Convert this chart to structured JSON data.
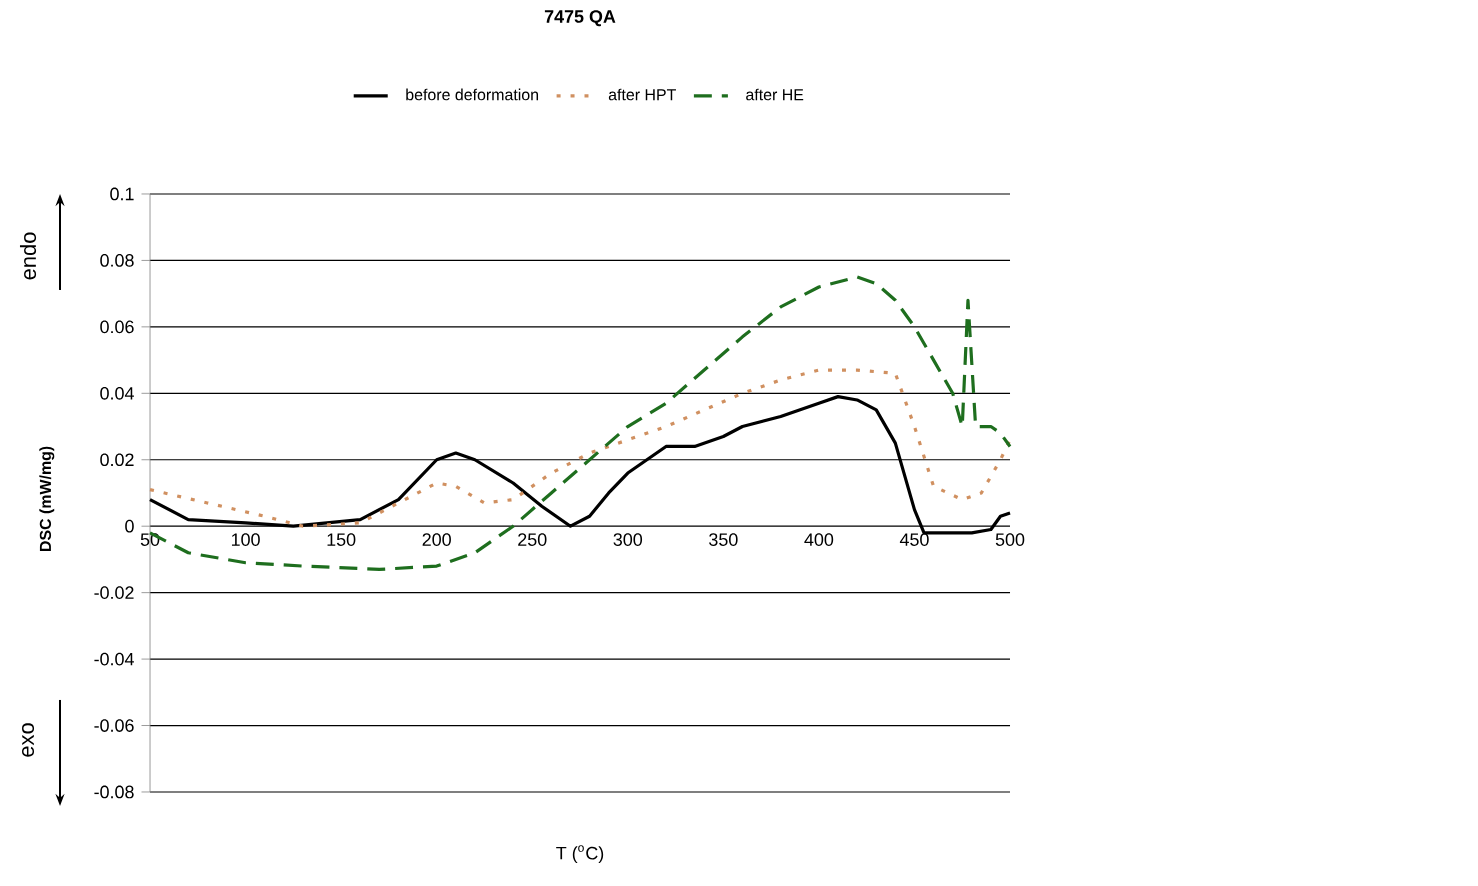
{
  "chart_data": {
    "type": "line",
    "title": "**7475 QA**",
    "xlabel": "T ($^{o}$C)",
    "ylabel": "**DSC (mW/mg)**",
    "annotations": [
      "endo",
      "exo"
    ],
    "xlim": [
      50,
      500
    ],
    "ylim": [
      -0.08,
      0.1
    ],
    "xticks": [
      50,
      100,
      150,
      200,
      250,
      300,
      350,
      400,
      450,
      500
    ],
    "yticks": [
      -0.08,
      -0.06,
      -0.04,
      -0.02,
      0,
      0.02,
      0.04,
      0.06,
      0.08,
      0.1
    ],
    "grid": "y",
    "legend": "top",
    "series": [
      {
        "name": "before deformation",
        "color": "#000000",
        "line_style": "solid",
        "x": [
          50,
          70,
          100,
          125,
          160,
          180,
          200,
          210,
          220,
          240,
          255,
          270,
          280,
          290,
          300,
          310,
          320,
          335,
          350,
          360,
          380,
          400,
          410,
          420,
          430,
          440,
          450,
          455,
          480,
          490,
          495,
          500
        ],
        "values": [
          0.008,
          0.002,
          0.001,
          0,
          0.002,
          0.008,
          0.02,
          0.022,
          0.02,
          0.013,
          0.006,
          0,
          0.003,
          0.01,
          0.016,
          0.02,
          0.024,
          0.024,
          0.027,
          0.03,
          0.033,
          0.037,
          0.039,
          0.038,
          0.035,
          0.025,
          0.005,
          -0.002,
          -0.002,
          -0.001,
          0.003,
          0.004
        ]
      },
      {
        "name": "after HPT",
        "color": "#d09060",
        "line_style": "dotted",
        "x": [
          50,
          80,
          110,
          130,
          160,
          180,
          200,
          210,
          225,
          240,
          260,
          280,
          300,
          320,
          340,
          360,
          380,
          400,
          420,
          440,
          450,
          460,
          475,
          485,
          495,
          500
        ],
        "values": [
          0.011,
          0.007,
          0.003,
          0,
          0.001,
          0.007,
          0.013,
          0.012,
          0.007,
          0.008,
          0.016,
          0.022,
          0.026,
          0.03,
          0.035,
          0.04,
          0.044,
          0.047,
          0.047,
          0.046,
          0.03,
          0.012,
          0.008,
          0.01,
          0.02,
          0.026
        ]
      },
      {
        "name": "after HE",
        "color": "#1e6e1e",
        "line_style": "dashed",
        "x": [
          50,
          70,
          100,
          130,
          170,
          200,
          220,
          240,
          260,
          280,
          300,
          320,
          340,
          360,
          380,
          400,
          420,
          430,
          440,
          450,
          460,
          470,
          475,
          478,
          482,
          490,
          495,
          500
        ],
        "values": [
          -0.002,
          -0.008,
          -0.011,
          -0.012,
          -0.013,
          -0.012,
          -0.008,
          0,
          0.01,
          0.02,
          0.03,
          0.037,
          0.047,
          0.057,
          0.066,
          0.072,
          0.075,
          0.073,
          0.068,
          0.06,
          0.05,
          0.04,
          0.03,
          0.068,
          0.03,
          0.03,
          0.028,
          0.024
        ]
      }
    ]
  }
}
